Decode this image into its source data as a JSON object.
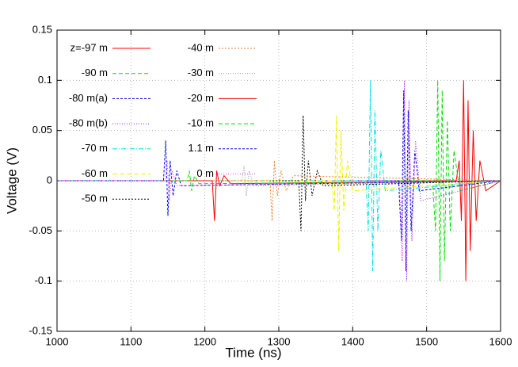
{
  "chart_data": {
    "type": "line",
    "xlabel": "Time (ns)",
    "ylabel": "Voltage (V)",
    "xlim": [
      1000,
      1600
    ],
    "xticks": [
      1000,
      1100,
      1200,
      1300,
      1400,
      1500,
      1600
    ],
    "ylim": [
      -0.15,
      0.15
    ],
    "yticks": [
      -0.15,
      -0.1,
      -0.05,
      0,
      0.05,
      0.1,
      0.15
    ],
    "grid": true,
    "legend": "top-left",
    "series": [
      {
        "name": "z=-97 m",
        "color": "#ff0000",
        "dash": "none",
        "x": [
          1000,
          1540,
          1544,
          1547,
          1550,
          1553,
          1556,
          1559,
          1563,
          1567,
          1572,
          1580,
          1600
        ],
        "values": [
          0,
          0,
          0.02,
          -0.04,
          0.1,
          -0.1,
          0.08,
          -0.07,
          0.05,
          -0.04,
          0.02,
          -0.01,
          0
        ]
      },
      {
        "name": "-90 m",
        "color": "#00e000",
        "dash": "5,3",
        "x": [
          1000,
          1508,
          1512,
          1515,
          1518,
          1521,
          1524,
          1528,
          1532,
          1537,
          1545,
          1600
        ],
        "values": [
          0,
          0,
          -0.05,
          0.1,
          -0.1,
          0.09,
          -0.08,
          0.06,
          -0.05,
          0.03,
          -0.01,
          0
        ]
      },
      {
        "name": "-80 m(a)",
        "color": "#0000ff",
        "dash": "3,2",
        "x": [
          1000,
          1462,
          1466,
          1469,
          1472,
          1475,
          1479,
          1484,
          1490,
          1600
        ],
        "values": [
          0,
          0,
          -0.06,
          0.09,
          -0.09,
          0.07,
          -0.05,
          0.03,
          -0.01,
          0
        ]
      },
      {
        "name": "-80 m(b)",
        "color": "#a020f0",
        "dash": "1,2",
        "x": [
          1000,
          1463,
          1467,
          1470,
          1473,
          1476,
          1480,
          1485,
          1492,
          1600
        ],
        "values": [
          0,
          0,
          -0.08,
          0.1,
          -0.1,
          0.08,
          -0.06,
          0.04,
          -0.02,
          0
        ]
      },
      {
        "name": "-70 m",
        "color": "#00e0e0",
        "dash": "6,2,1,2",
        "x": [
          1000,
          1418,
          1421,
          1424,
          1427,
          1430,
          1434,
          1438,
          1444,
          1600
        ],
        "values": [
          0,
          0,
          -0.05,
          0.1,
          -0.09,
          0.07,
          -0.05,
          0.03,
          -0.01,
          0
        ]
      },
      {
        "name": "-60 m",
        "color": "#f0f000",
        "dash": "6,3",
        "x": [
          1000,
          1372,
          1375,
          1378,
          1381,
          1384,
          1388,
          1393,
          1400,
          1600
        ],
        "values": [
          0,
          0,
          -0.03,
          0.065,
          -0.07,
          0.05,
          -0.03,
          0.02,
          -0.01,
          0
        ]
      },
      {
        "name": "-50 m",
        "color": "#000000",
        "dash": "2,2",
        "x": [
          1000,
          1327,
          1330,
          1333,
          1336,
          1340,
          1345,
          1352,
          1360,
          1600
        ],
        "values": [
          0,
          0,
          -0.05,
          0.065,
          -0.02,
          0.02,
          -0.015,
          0.01,
          -0.005,
          0
        ]
      },
      {
        "name": "-40 m",
        "color": "#f08030",
        "dash": "2,2",
        "x": [
          1000,
          1288,
          1291,
          1294,
          1298,
          1303,
          1310,
          1320,
          1600
        ],
        "values": [
          0,
          0,
          -0.04,
          0.02,
          -0.015,
          0.01,
          -0.01,
          0.005,
          0
        ]
      },
      {
        "name": "-30 m",
        "color": "#909090",
        "dash": "1,2",
        "x": [
          1000,
          1250,
          1253,
          1256,
          1260,
          1266,
          1600
        ],
        "values": [
          0,
          0,
          0.015,
          -0.015,
          0.01,
          -0.005,
          0
        ]
      },
      {
        "name": "-20 m",
        "color": "#ff0000",
        "dash": "none",
        "x": [
          1000,
          1210,
          1213,
          1216,
          1220,
          1226,
          1235,
          1600
        ],
        "values": [
          0,
          0,
          -0.04,
          0.01,
          -0.005,
          0.005,
          -0.003,
          0
        ]
      },
      {
        "name": "-10 m",
        "color": "#00e000",
        "dash": "5,3",
        "x": [
          1000,
          1176,
          1179,
          1182,
          1186,
          1192,
          1600
        ],
        "values": [
          0,
          0,
          0.01,
          -0.01,
          0.005,
          -0.003,
          0
        ]
      },
      {
        "name": "1.1 m",
        "color": "#0000ff",
        "dash": "3,2",
        "x": [
          1000,
          1144,
          1147,
          1150,
          1153,
          1157,
          1162,
          1168,
          1600
        ],
        "values": [
          0,
          0,
          0.04,
          -0.035,
          0.02,
          -0.015,
          0.01,
          -0.005,
          0
        ]
      },
      {
        "name": "0 m",
        "color": "#e040f0",
        "dash": "1,2",
        "x": [
          1000,
          1146,
          1149,
          1152,
          1156,
          1162,
          1600
        ],
        "values": [
          0,
          0,
          0.02,
          -0.02,
          0.01,
          -0.005,
          0
        ]
      }
    ]
  }
}
